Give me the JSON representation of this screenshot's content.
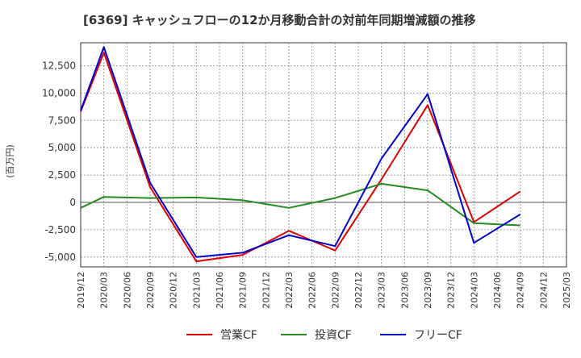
{
  "chart_data": {
    "type": "line",
    "title": "[6369]  キャッシュフローの12か月移動合計の対前年同期増減額の推移",
    "ylabel": "(百万円)",
    "xlabel": "",
    "x_ticks": [
      "2019/12",
      "2020/03",
      "2020/06",
      "2020/09",
      "2020/12",
      "2021/03",
      "2021/06",
      "2021/09",
      "2021/12",
      "2022/03",
      "2022/06",
      "2022/09",
      "2022/12",
      "2023/03",
      "2023/06",
      "2023/09",
      "2023/12",
      "2024/03",
      "2024/06",
      "2024/09",
      "2024/12",
      "2025/03"
    ],
    "y_ticks": [
      12500,
      10000,
      7500,
      5000,
      2500,
      0,
      -2500,
      -5000
    ],
    "y_tick_labels": [
      "12,500",
      "10,000",
      "7,500",
      "5,000",
      "2,500",
      "0",
      "-2,500",
      "-5,000"
    ],
    "ylim": [
      -5900,
      14600
    ],
    "grid": true,
    "legend": "bottom",
    "series": [
      {
        "name": "営業CF",
        "color": "#dd0000",
        "x": [
          "2019/12",
          "2020/03",
          "2020/09",
          "2021/03",
          "2021/09",
          "2022/03",
          "2022/09",
          "2023/03",
          "2023/09",
          "2024/03",
          "2024/09"
        ],
        "values": [
          8300,
          13700,
          1400,
          -5400,
          -4800,
          -2600,
          -4400,
          2100,
          8900,
          -1800,
          1000
        ]
      },
      {
        "name": "投資CF",
        "color": "#228b22",
        "x": [
          "2019/12",
          "2020/03",
          "2020/09",
          "2021/03",
          "2021/09",
          "2022/03",
          "2022/09",
          "2023/03",
          "2023/09",
          "2024/03",
          "2024/09"
        ],
        "values": [
          -500,
          500,
          400,
          450,
          200,
          -500,
          400,
          1700,
          1100,
          -1900,
          -2100
        ]
      },
      {
        "name": "フリーCF",
        "color": "#0000cc",
        "x": [
          "2019/12",
          "2020/03",
          "2020/09",
          "2021/03",
          "2021/09",
          "2022/03",
          "2022/09",
          "2023/03",
          "2023/09",
          "2024/03",
          "2024/09"
        ],
        "values": [
          8400,
          14200,
          1800,
          -5000,
          -4600,
          -3000,
          -4000,
          4000,
          9900,
          -3700,
          -1100
        ]
      }
    ]
  }
}
